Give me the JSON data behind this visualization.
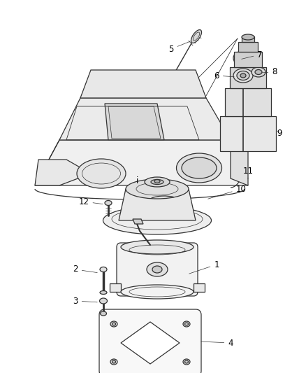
{
  "background_color": "#ffffff",
  "line_color": "#333333",
  "label_color": "#000000",
  "label_fontsize": 8.5,
  "leader_line_color": "#333333",
  "lw": 0.9
}
